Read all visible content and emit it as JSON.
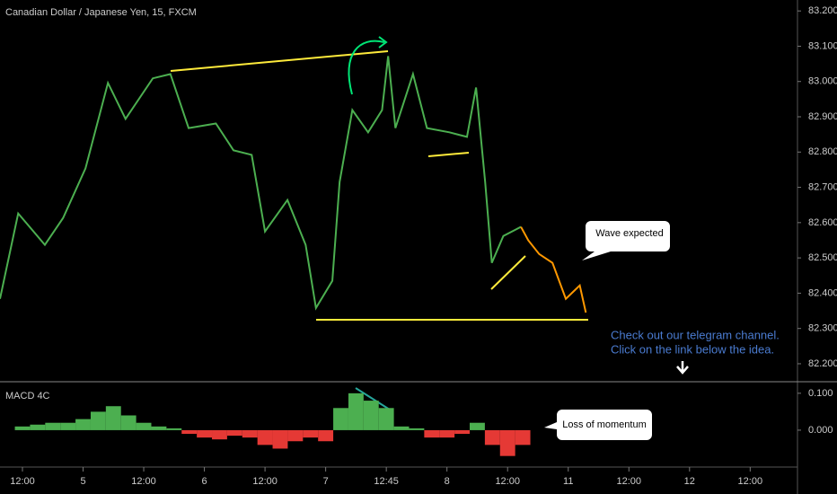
{
  "chart_data": [
    {
      "type": "line",
      "title": "Canadian Dollar / Japanese Yen, 15, FXCM",
      "annotations": [
        "Wave expected",
        "Check out our telegram channel.",
        "Click on the link below the idea."
      ],
      "series": [
        {
          "color": "#4caf50",
          "x": [
            -0.37,
            -0.07,
            0.37,
            0.67,
            1.04,
            1.41,
            1.7,
            2.15,
            2.44,
            2.74,
            3.19,
            3.48,
            3.78,
            4.0,
            4.37,
            4.67,
            4.84,
            5.11,
            5.23,
            5.44,
            5.7,
            5.93,
            6.03,
            6.15,
            6.44,
            6.67,
            7.04,
            7.33,
            7.48,
            7.63,
            7.74,
            7.93,
            8.22
          ],
          "values": [
            82.384,
            82.626,
            82.537,
            82.613,
            82.754,
            82.996,
            82.894,
            83.009,
            83.021,
            82.868,
            82.881,
            82.805,
            82.792,
            82.575,
            82.664,
            82.537,
            82.358,
            82.435,
            82.715,
            82.919,
            82.856,
            82.919,
            83.072,
            82.868,
            83.021,
            82.868,
            82.856,
            82.843,
            82.983,
            82.715,
            82.486,
            82.562,
            82.588
          ]
        },
        {
          "color": "#ff9800",
          "x": [
            8.22,
            8.34,
            8.52,
            8.74,
            8.96,
            9.19,
            9.29
          ],
          "values": [
            82.588,
            82.55,
            82.511,
            82.486,
            82.384,
            82.422,
            82.345
          ]
        }
      ],
      "xlim": [
        -0.37,
        12.78
      ],
      "xticks": [
        {
          "value": 0,
          "label": "12:00"
        },
        {
          "value": 1,
          "label": "5"
        },
        {
          "value": 2,
          "label": "12:00"
        },
        {
          "value": 3,
          "label": "6"
        },
        {
          "value": 4,
          "label": "12:00"
        },
        {
          "value": 5,
          "label": "7"
        },
        {
          "value": 6,
          "label": "12:45"
        },
        {
          "value": 7,
          "label": "8"
        },
        {
          "value": 8,
          "label": "12:00"
        },
        {
          "value": 9,
          "label": "11"
        },
        {
          "value": 10,
          "label": "12:00"
        },
        {
          "value": 11,
          "label": "12"
        },
        {
          "value": 12,
          "label": "12:00"
        }
      ],
      "ylim": [
        82.149,
        83.231
      ],
      "yticks": [
        {
          "value": 83.2,
          "label": "83.200"
        },
        {
          "value": 83.1,
          "label": "83.100"
        },
        {
          "value": 83.0,
          "label": "83.000"
        },
        {
          "value": 82.9,
          "label": "82.900"
        },
        {
          "value": 82.8,
          "label": "82.800"
        },
        {
          "value": 82.7,
          "label": "82.700"
        },
        {
          "value": 82.6,
          "label": "82.600"
        },
        {
          "value": 82.5,
          "label": "82.500"
        },
        {
          "value": 82.4,
          "label": "82.400"
        },
        {
          "value": 82.3,
          "label": "82.300"
        },
        {
          "value": 82.2,
          "label": "82.200"
        }
      ]
    },
    {
      "type": "bar",
      "title": "MACD 4C",
      "annotations": [
        "Loss of momentum"
      ],
      "x": [
        0,
        0.25,
        0.5,
        0.75,
        1,
        1.25,
        1.5,
        1.75,
        2,
        2.25,
        2.5,
        2.75,
        3,
        3.25,
        3.5,
        3.75,
        4,
        4.25,
        4.5,
        4.75,
        5,
        5.25,
        5.5,
        5.75,
        6,
        6.25,
        6.5,
        6.75,
        7,
        7.25,
        7.5,
        7.75,
        8,
        8.25
      ],
      "values": [
        0.01,
        0.015,
        0.02,
        0.02,
        0.03,
        0.05,
        0.065,
        0.04,
        0.02,
        0.01,
        0.005,
        -0.01,
        -0.02,
        -0.025,
        -0.015,
        -0.02,
        -0.04,
        -0.05,
        -0.03,
        -0.02,
        -0.03,
        0.06,
        0.1,
        0.08,
        0.06,
        0.01,
        0.005,
        -0.02,
        -0.02,
        -0.01,
        0.02,
        -0.04,
        -0.07,
        -0.04
      ],
      "up_color": "#4caf50",
      "down_color": "#e53935",
      "ylim": [
        -0.1,
        0.124
      ],
      "yticks": [
        {
          "value": 0.1,
          "label": "0.100"
        },
        {
          "value": 0,
          "label": "0.000"
        }
      ]
    }
  ]
}
